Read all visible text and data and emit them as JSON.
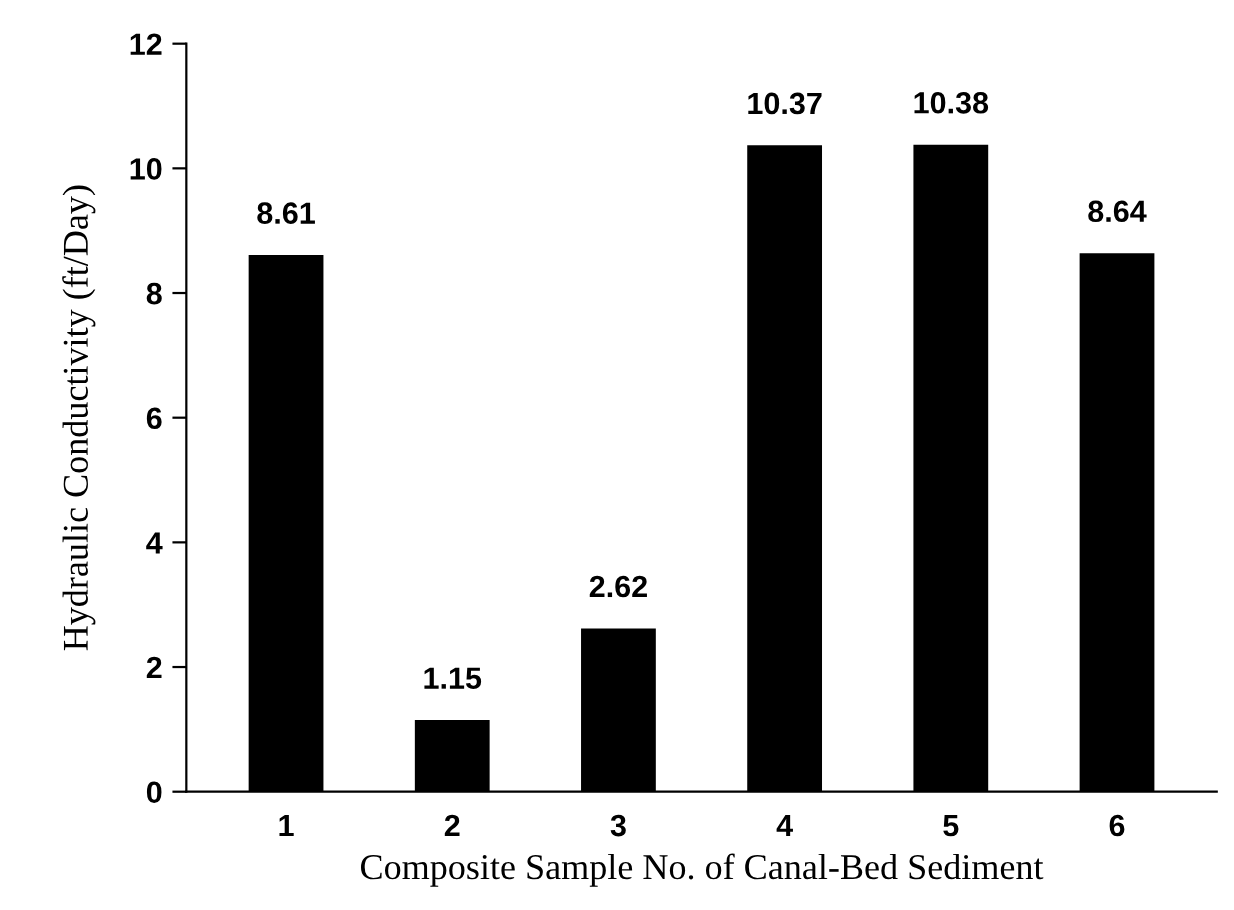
{
  "chart_data": {
    "type": "bar",
    "xlabel": "Composite Sample No. of Canal-Bed Sediment",
    "ylabel": "Hydraulic Conductivity (ft/Day)",
    "categories": [
      "1",
      "2",
      "3",
      "4",
      "5",
      "6"
    ],
    "values": [
      8.61,
      1.15,
      2.62,
      10.37,
      10.38,
      8.64
    ],
    "color": "#000000",
    "ylim": [
      0,
      12
    ],
    "yticks": [
      0,
      2,
      4,
      6,
      8,
      10,
      12
    ],
    "data_labels": true,
    "grid": false
  }
}
